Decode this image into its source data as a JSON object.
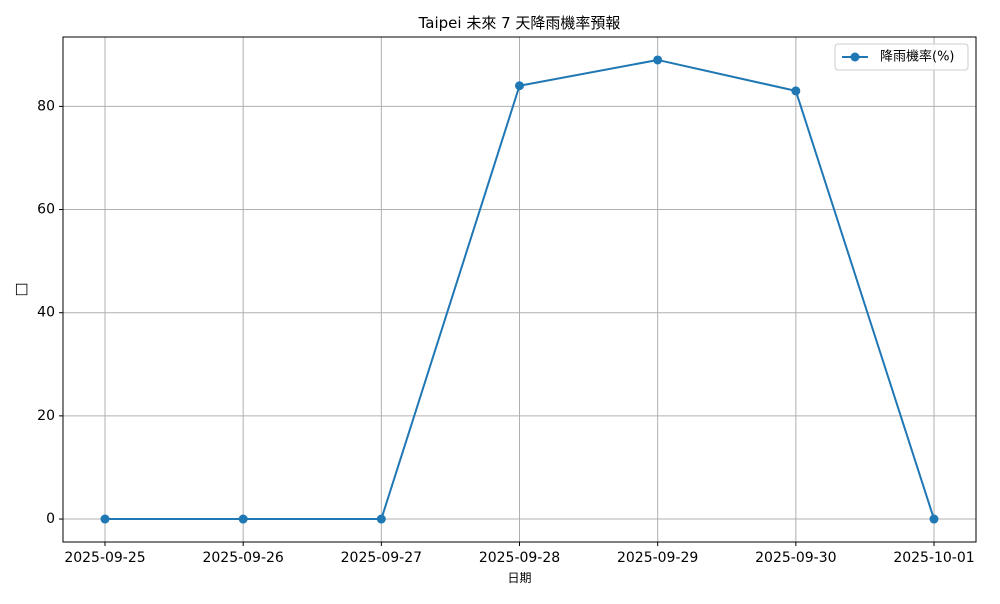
{
  "chart_data": {
    "type": "line",
    "title": "Taipei 未來 7 天降雨機率預報",
    "xlabel": "日期",
    "ylabel": "□",
    "categories": [
      "2025-09-25",
      "2025-09-26",
      "2025-09-27",
      "2025-09-28",
      "2025-09-29",
      "2025-09-30",
      "2025-10-01"
    ],
    "series": [
      {
        "name": "降雨機率(%)",
        "values": [
          0,
          0,
          0,
          84,
          89,
          83,
          0
        ],
        "color": "#1f77b4",
        "marker": "circle"
      }
    ],
    "yticks": [
      0,
      20,
      40,
      60,
      80
    ],
    "ylim": [
      -4.45,
      93.45
    ],
    "grid": true,
    "legend_position": "top-right"
  }
}
